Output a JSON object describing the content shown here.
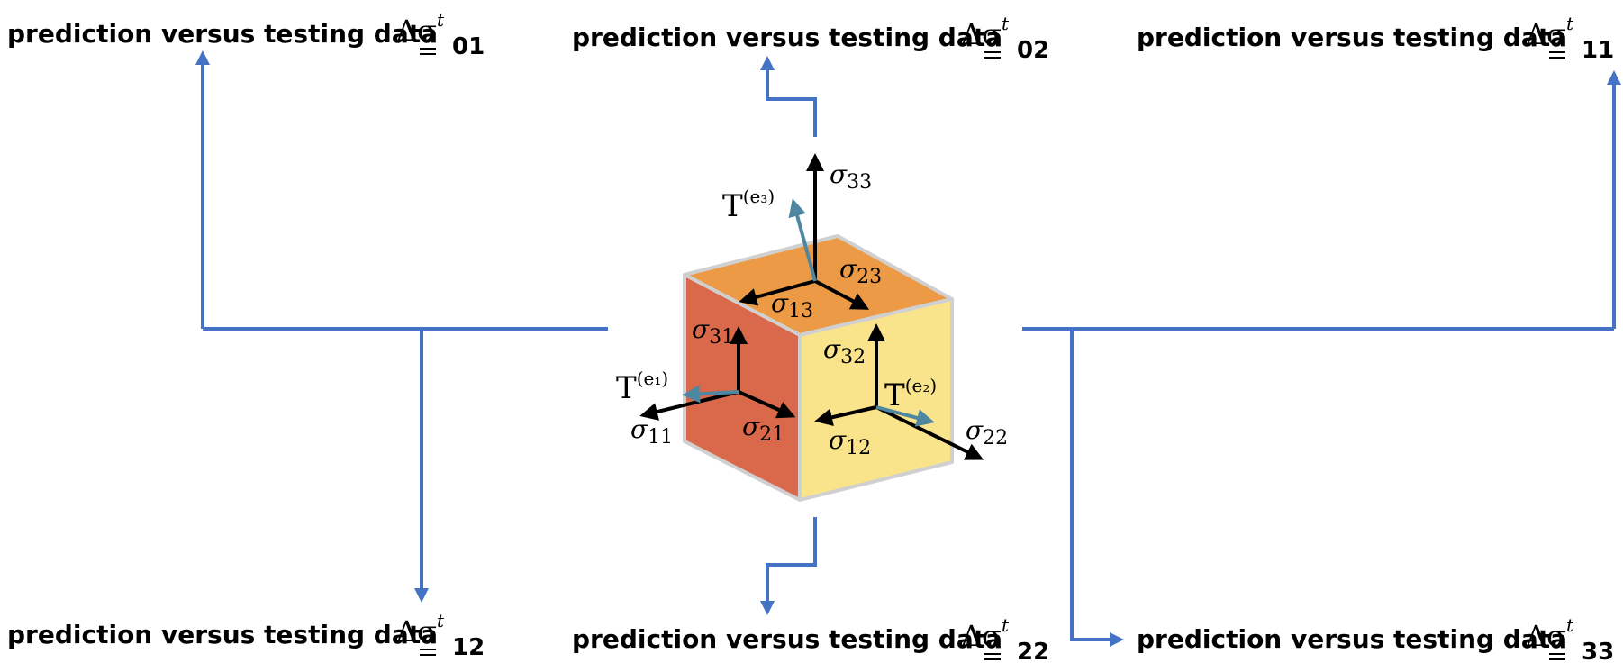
{
  "labels": [
    {
      "id": "01",
      "text": "prediction versus testing data",
      "symbol": "Δσ",
      "superscript": "t",
      "subscript": "01"
    },
    {
      "id": "02",
      "text": "prediction versus testing data",
      "symbol": "Δσ",
      "superscript": "t",
      "subscript": "02"
    },
    {
      "id": "11",
      "text": "prediction versus testing data",
      "symbol": "Δσ",
      "superscript": "t",
      "subscript": "11"
    },
    {
      "id": "12",
      "text": "prediction versus testing data",
      "symbol": "Δσ",
      "superscript": "t",
      "subscript": "12"
    },
    {
      "id": "22",
      "text": "prediction versus testing data",
      "symbol": "Δσ",
      "superscript": "t",
      "subscript": "22"
    },
    {
      "id": "33",
      "text": "prediction versus testing data",
      "symbol": "Δσ",
      "superscript": "t",
      "subscript": "33"
    }
  ],
  "stress_components": [
    {
      "symbol": "σ",
      "sub": "33"
    },
    {
      "symbol": "σ",
      "sub": "23"
    },
    {
      "symbol": "σ",
      "sub": "13"
    },
    {
      "symbol": "σ",
      "sub": "31"
    },
    {
      "symbol": "σ",
      "sub": "32"
    },
    {
      "symbol": "σ",
      "sub": "11"
    },
    {
      "symbol": "σ",
      "sub": "21"
    },
    {
      "symbol": "σ",
      "sub": "12"
    },
    {
      "symbol": "σ",
      "sub": "22"
    }
  ],
  "traction_vectors": [
    {
      "symbol": "T",
      "sup": "(e₃)"
    },
    {
      "symbol": "T",
      "sup": "(e₁)"
    },
    {
      "symbol": "T",
      "sup": "(e₂)"
    }
  ],
  "colors": {
    "connector": "#4472c4",
    "traction_arrow": "#4f87a0",
    "face_top": "#ec9a45",
    "face_left": "#d9694a",
    "face_right": "#f9e48c",
    "cube_edge": "#d0d0d0"
  }
}
